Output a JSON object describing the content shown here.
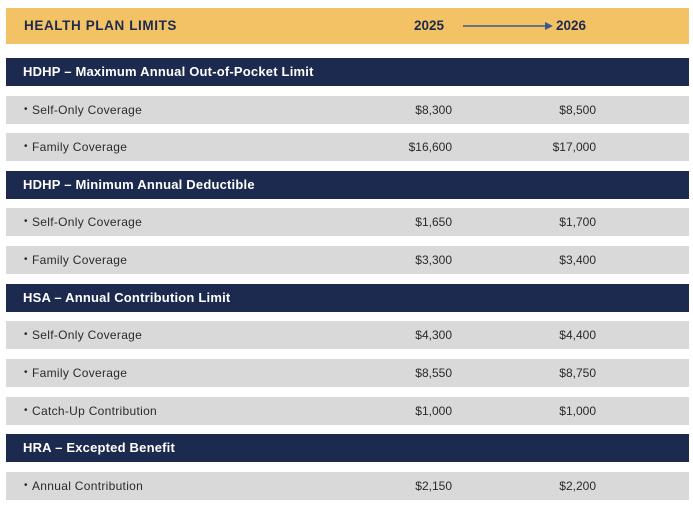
{
  "header": {
    "title": "HEALTH PLAN LIMITS",
    "year_from": "2025",
    "year_to": "2026"
  },
  "sections": [
    {
      "title": "HDHP – Maximum Annual Out-of-Pocket Limit",
      "rows": [
        {
          "label": "Self-Only Coverage",
          "v2025": "$8,300",
          "v2026": "$8,500"
        },
        {
          "label": "Family Coverage",
          "v2025": "$16,600",
          "v2026": "$17,000"
        }
      ]
    },
    {
      "title": "HDHP – Minimum Annual Deductible",
      "rows": [
        {
          "label": "Self-Only Coverage",
          "v2025": "$1,650",
          "v2026": "$1,700"
        },
        {
          "label": "Family Coverage",
          "v2025": "$3,300",
          "v2026": "$3,400"
        }
      ]
    },
    {
      "title": "HSA – Annual Contribution Limit",
      "rows": [
        {
          "label": "Self-Only Coverage",
          "v2025": "$4,300",
          "v2026": "$4,400"
        },
        {
          "label": "Family Coverage",
          "v2025": "$8,550",
          "v2026": "$8,750"
        },
        {
          "label": "Catch-Up Contribution",
          "v2025": "$1,000",
          "v2026": "$1,000"
        }
      ]
    },
    {
      "title": "HRA – Excepted Benefit",
      "rows": [
        {
          "label": "Annual Contribution",
          "v2025": "$2,150",
          "v2026": "$2,200"
        }
      ]
    }
  ],
  "colors": {
    "header_bg": "#f3c265",
    "section_bg": "#1b2a4e",
    "row_bg": "#d9d9d9",
    "arrow": "#3a5a8c"
  }
}
